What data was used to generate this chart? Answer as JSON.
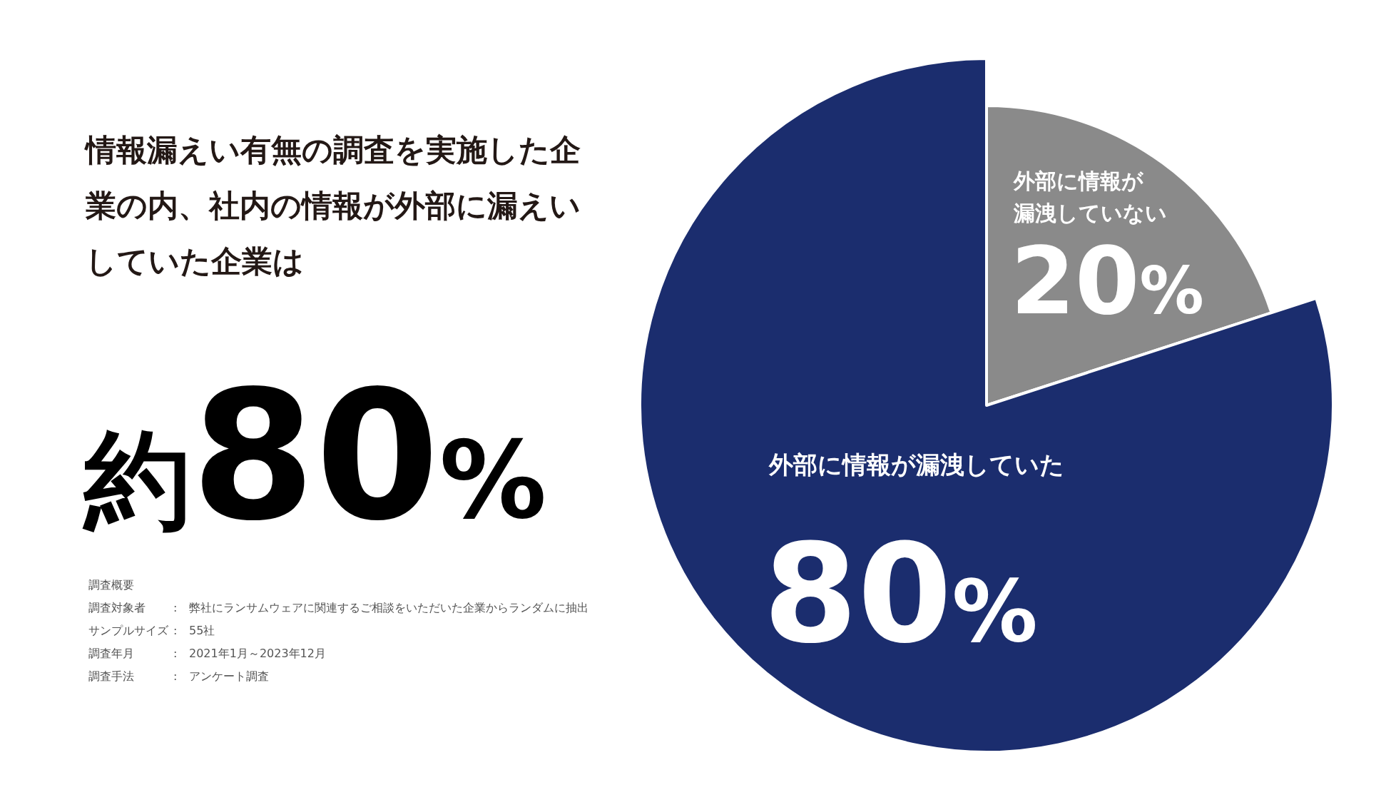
{
  "chart_data": {
    "type": "pie",
    "title": "情報漏えい有無の調査を実施した企業の内、社内の情報が外部に漏えいしていた企業は",
    "categories": [
      "外部に情報が漏洩していない",
      "外部に情報が漏洩していた"
    ],
    "values": [
      20,
      80
    ],
    "colors": [
      "#8a8a8a",
      "#1b2d6e"
    ],
    "value_labels": [
      "20%",
      "80%"
    ],
    "annotations": [
      "約80%",
      "調査概要",
      "調査対象者 : 弊社にランサムウェアに関連するご相談をいただいた企業からランダムに抽出",
      "サンプルサイズ : 55社",
      "調査年月 : 2021年1月～2023年12月",
      "調査手法 : アンケート調査"
    ]
  }
}
